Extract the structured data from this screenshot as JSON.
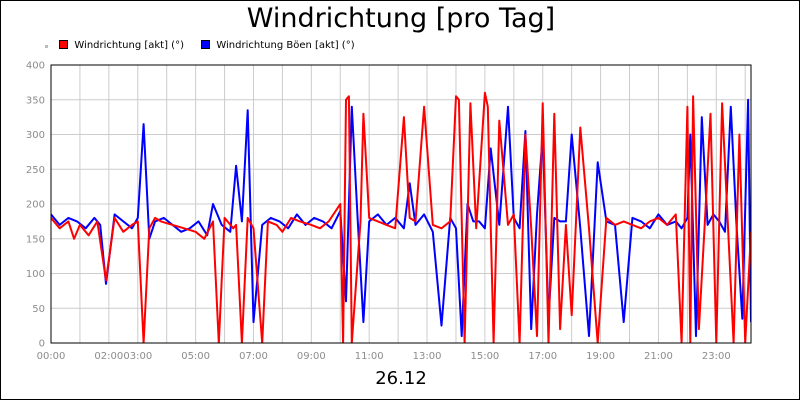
{
  "chart_data": {
    "type": "line",
    "title": "Windrichtung [pro Tag]",
    "date_label": "26.12",
    "ylim": [
      0,
      400
    ],
    "y_ticks": [
      0,
      50,
      100,
      150,
      200,
      250,
      300,
      350,
      400
    ],
    "x_range_hours": [
      0,
      24.2
    ],
    "x_tick_labels": [
      {
        "hour": 0,
        "label": "00:00"
      },
      {
        "hour": 2,
        "label": "02:00"
      },
      {
        "hour": 3,
        "label": "03:00"
      },
      {
        "hour": 5,
        "label": "05:00"
      },
      {
        "hour": 7,
        "label": "07:00"
      },
      {
        "hour": 9,
        "label": "09:00"
      },
      {
        "hour": 11,
        "label": "11:00"
      },
      {
        "hour": 13,
        "label": "13:00"
      },
      {
        "hour": 15,
        "label": "15:00"
      },
      {
        "hour": 17,
        "label": "17:00"
      },
      {
        "hour": 19,
        "label": "19:00"
      },
      {
        "hour": 21,
        "label": "21:00"
      },
      {
        "hour": 23,
        "label": "23:00"
      }
    ],
    "grid": true,
    "legend_position": "top-left",
    "colors": {
      "red": "#ff0000",
      "blue": "#0000ff",
      "grid": "#cccccc",
      "axis": "#000000"
    },
    "series": [
      {
        "name": "Windrichtung [akt] (°)",
        "color": "#ff0000",
        "x_hours": [
          0.0,
          0.3,
          0.6,
          0.8,
          1.0,
          1.3,
          1.6,
          1.9,
          2.2,
          2.5,
          2.8,
          3.0,
          3.2,
          3.4,
          3.6,
          3.8,
          4.2,
          4.6,
          5.0,
          5.3,
          5.6,
          5.8,
          6.0,
          6.3,
          6.4,
          6.6,
          6.8,
          7.0,
          7.3,
          7.5,
          7.8,
          8.0,
          8.3,
          8.6,
          9.0,
          9.3,
          9.6,
          10.0,
          10.1,
          10.2,
          10.3,
          10.4,
          10.7,
          10.8,
          11.0,
          11.3,
          11.6,
          11.9,
          12.2,
          12.4,
          12.6,
          12.9,
          13.2,
          13.5,
          13.8,
          14.0,
          14.1,
          14.3,
          14.5,
          14.7,
          15.0,
          15.1,
          15.3,
          15.5,
          15.8,
          16.0,
          16.2,
          16.4,
          16.6,
          16.8,
          17.0,
          17.2,
          17.4,
          17.6,
          17.8,
          18.0,
          18.3,
          18.6,
          18.9,
          19.2,
          19.5,
          19.8,
          20.1,
          20.4,
          20.7,
          21.0,
          21.3,
          21.6,
          21.8,
          22.0,
          22.1,
          22.2,
          22.4,
          22.6,
          22.8,
          23.0,
          23.2,
          23.4,
          23.6,
          23.8,
          24.0,
          24.2
        ],
        "y": [
          180,
          165,
          175,
          150,
          170,
          155,
          175,
          90,
          180,
          160,
          170,
          175,
          0,
          165,
          180,
          175,
          170,
          165,
          160,
          150,
          175,
          0,
          180,
          165,
          170,
          0,
          180,
          165,
          0,
          175,
          170,
          160,
          180,
          175,
          170,
          165,
          175,
          200,
          0,
          350,
          355,
          0,
          175,
          330,
          180,
          175,
          170,
          165,
          325,
          180,
          175,
          340,
          170,
          165,
          175,
          355,
          350,
          0,
          345,
          165,
          360,
          340,
          0,
          320,
          170,
          185,
          0,
          300,
          165,
          10,
          345,
          0,
          330,
          20,
          170,
          40,
          310,
          165,
          0,
          180,
          170,
          175,
          170,
          165,
          175,
          180,
          170,
          185,
          0,
          340,
          0,
          355,
          20,
          170,
          330,
          0,
          345,
          170,
          0,
          300,
          0,
          160
        ],
        "x_label_note": ""
      },
      {
        "name": "Windrichtung Böen [akt] (°)",
        "color": "#0000ff",
        "x_hours": [
          0.0,
          0.3,
          0.6,
          0.9,
          1.2,
          1.5,
          1.7,
          1.9,
          2.2,
          2.5,
          2.8,
          3.0,
          3.2,
          3.4,
          3.6,
          3.9,
          4.2,
          4.5,
          4.8,
          5.1,
          5.4,
          5.6,
          5.9,
          6.2,
          6.4,
          6.6,
          6.8,
          7.0,
          7.3,
          7.6,
          7.9,
          8.2,
          8.5,
          8.8,
          9.1,
          9.4,
          9.7,
          10.0,
          10.2,
          10.4,
          10.6,
          10.8,
          11.0,
          11.3,
          11.6,
          11.9,
          12.2,
          12.4,
          12.6,
          12.9,
          13.2,
          13.5,
          13.8,
          14.0,
          14.2,
          14.4,
          14.6,
          14.8,
          15.0,
          15.2,
          15.5,
          15.8,
          16.0,
          16.2,
          16.4,
          16.6,
          16.8,
          17.0,
          17.2,
          17.4,
          17.6,
          17.8,
          18.0,
          18.3,
          18.6,
          18.9,
          19.2,
          19.5,
          19.8,
          20.1,
          20.4,
          20.7,
          21.0,
          21.3,
          21.6,
          21.8,
          22.0,
          22.1,
          22.3,
          22.5,
          22.7,
          22.9,
          23.1,
          23.3,
          23.5,
          23.7,
          23.9,
          24.1,
          24.2
        ],
        "y": [
          185,
          170,
          180,
          175,
          165,
          180,
          170,
          85,
          185,
          175,
          165,
          180,
          315,
          150,
          175,
          180,
          170,
          160,
          165,
          175,
          155,
          200,
          170,
          160,
          255,
          175,
          335,
          30,
          170,
          180,
          175,
          165,
          185,
          170,
          180,
          175,
          165,
          190,
          60,
          340,
          180,
          30,
          175,
          185,
          170,
          180,
          165,
          230,
          170,
          185,
          160,
          25,
          180,
          165,
          10,
          200,
          175,
          175,
          165,
          280,
          170,
          340,
          180,
          165,
          305,
          20,
          185,
          300,
          35,
          180,
          175,
          175,
          300,
          165,
          10,
          260,
          175,
          170,
          30,
          180,
          175,
          165,
          185,
          170,
          175,
          165,
          180,
          300,
          10,
          325,
          170,
          185,
          175,
          160,
          340,
          170,
          35,
          350,
          30
        ],
        "x_label_note": ""
      }
    ]
  }
}
